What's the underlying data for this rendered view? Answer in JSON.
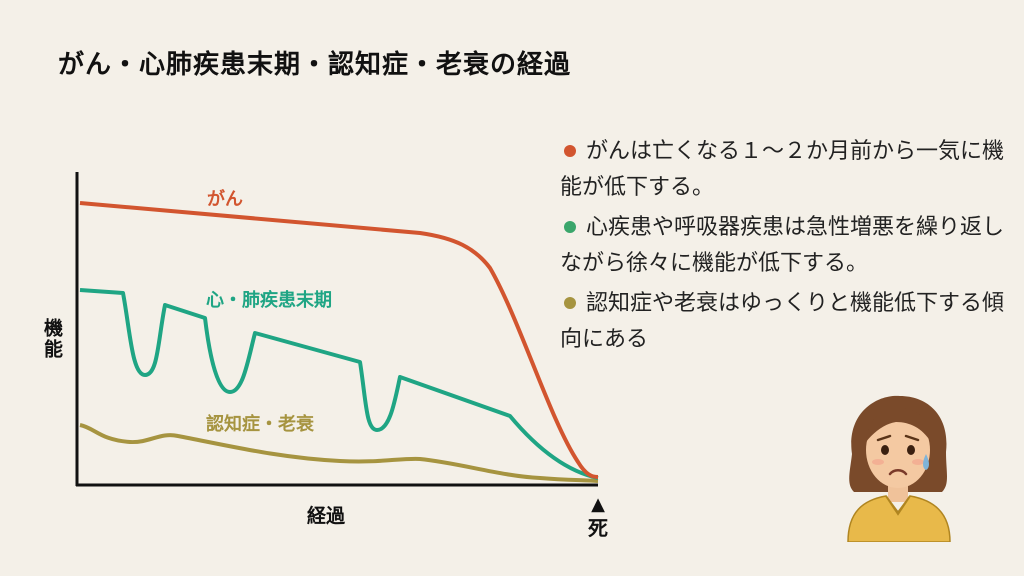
{
  "title": "がん・心肺疾患末期・認知症・老衰の経過",
  "chart_data": {
    "type": "line",
    "ylabel": "機能",
    "xlabel": "経過",
    "end_marker": "▲",
    "end_label": "死",
    "series": [
      {
        "name": "がん",
        "color": "#d2552f"
      },
      {
        "name": "心・肺疾患末期",
        "color": "#1fa584"
      },
      {
        "name": "認知症・老衰",
        "color": "#a69440"
      }
    ]
  },
  "notes": [
    {
      "color": "#d2552f",
      "text": "がんは亡くなる１～２か月前から一気に機能が低下する。"
    },
    {
      "color": "#3aa66b",
      "text": "心疾患や呼吸器疾患は急性増悪を繰り返しながら徐々に機能が低下する。"
    },
    {
      "color": "#a69440",
      "text": "認知症や老衰はゆっくりと機能低下する傾向にある"
    }
  ],
  "avatar_icon": "worried-woman-icon"
}
